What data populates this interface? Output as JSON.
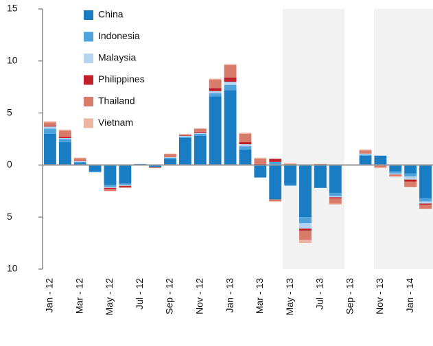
{
  "chart_data": {
    "type": "stacked_bar",
    "categories": [
      "Jan - 12",
      null,
      "Mar - 12",
      null,
      "May - 12",
      null,
      "Jul - 12",
      null,
      "Sep - 12",
      null,
      "Nov - 12",
      null,
      "Jan - 13",
      null,
      "Mar - 13",
      null,
      "May - 13",
      null,
      "Jul - 13",
      null,
      "Sep - 13",
      null,
      "Nov - 13",
      null,
      "Jan - 14",
      null
    ],
    "series": [
      {
        "name": "China",
        "color": "#1a7dc4",
        "values": [
          3.0,
          2.2,
          0.2,
          -0.6,
          -1.9,
          -1.8,
          0.1,
          -0.2,
          0.6,
          2.6,
          2.8,
          6.6,
          7.2,
          1.5,
          -1.2,
          -3.3,
          -1.9,
          -5.0,
          -2.2,
          -2.7,
          0,
          0.9,
          0.9,
          -0.6,
          -0.8,
          -3.2
        ]
      },
      {
        "name": "Indonesia",
        "color": "#4ea3dc",
        "values": [
          0.5,
          0.3,
          0.1,
          -0.1,
          -0.2,
          -0.1,
          0,
          0,
          0.1,
          0.1,
          0.2,
          0.3,
          0.5,
          0.3,
          0,
          0.3,
          -0.1,
          -0.6,
          0,
          -0.3,
          0,
          0.1,
          0,
          -0.2,
          -0.3,
          -0.3
        ]
      },
      {
        "name": "Malaysia",
        "color": "#b4d4ef",
        "values": [
          0.2,
          0.1,
          0.1,
          0,
          -0.1,
          -0.1,
          0,
          0,
          0.05,
          0.1,
          0.1,
          0.2,
          0.3,
          0.2,
          0,
          0,
          0,
          -0.5,
          0,
          -0.1,
          0,
          0.1,
          0,
          -0.1,
          -0.3,
          -0.2
        ]
      },
      {
        "name": "Philippines",
        "color": "#c0202a",
        "values": [
          0.1,
          0.1,
          0.05,
          0,
          -0.1,
          -0.1,
          0,
          0,
          0,
          0.05,
          0.1,
          0.3,
          0.4,
          0.2,
          0.1,
          0.3,
          0,
          -0.2,
          0,
          -0.1,
          0,
          0,
          0,
          0,
          -0.2,
          -0.1
        ]
      },
      {
        "name": "Thailand",
        "color": "#d97b6a",
        "values": [
          0.3,
          0.6,
          0.2,
          0,
          -0.2,
          -0.1,
          0,
          -0.1,
          0.3,
          0.1,
          0.3,
          0.8,
          1.2,
          0.8,
          0.5,
          -0.2,
          0.1,
          -0.9,
          0.1,
          -0.5,
          0,
          0.3,
          -0.2,
          -0.2,
          -0.5,
          -0.4
        ]
      },
      {
        "name": "Vietnam",
        "color": "#edb3a3",
        "values": [
          0.1,
          0.1,
          0.05,
          0,
          0,
          0,
          0,
          0,
          0.05,
          0,
          0,
          0.1,
          0.1,
          0.1,
          0.1,
          0,
          0.1,
          -0.3,
          0,
          -0.1,
          0,
          0.1,
          -0.1,
          0,
          0,
          0
        ]
      }
    ],
    "ylim": [
      -10,
      15
    ],
    "yticks": [
      {
        "value": -10,
        "label": "10"
      },
      {
        "value": -5,
        "label": "5"
      },
      0,
      5,
      10,
      15
    ],
    "legend": "upper left"
  }
}
